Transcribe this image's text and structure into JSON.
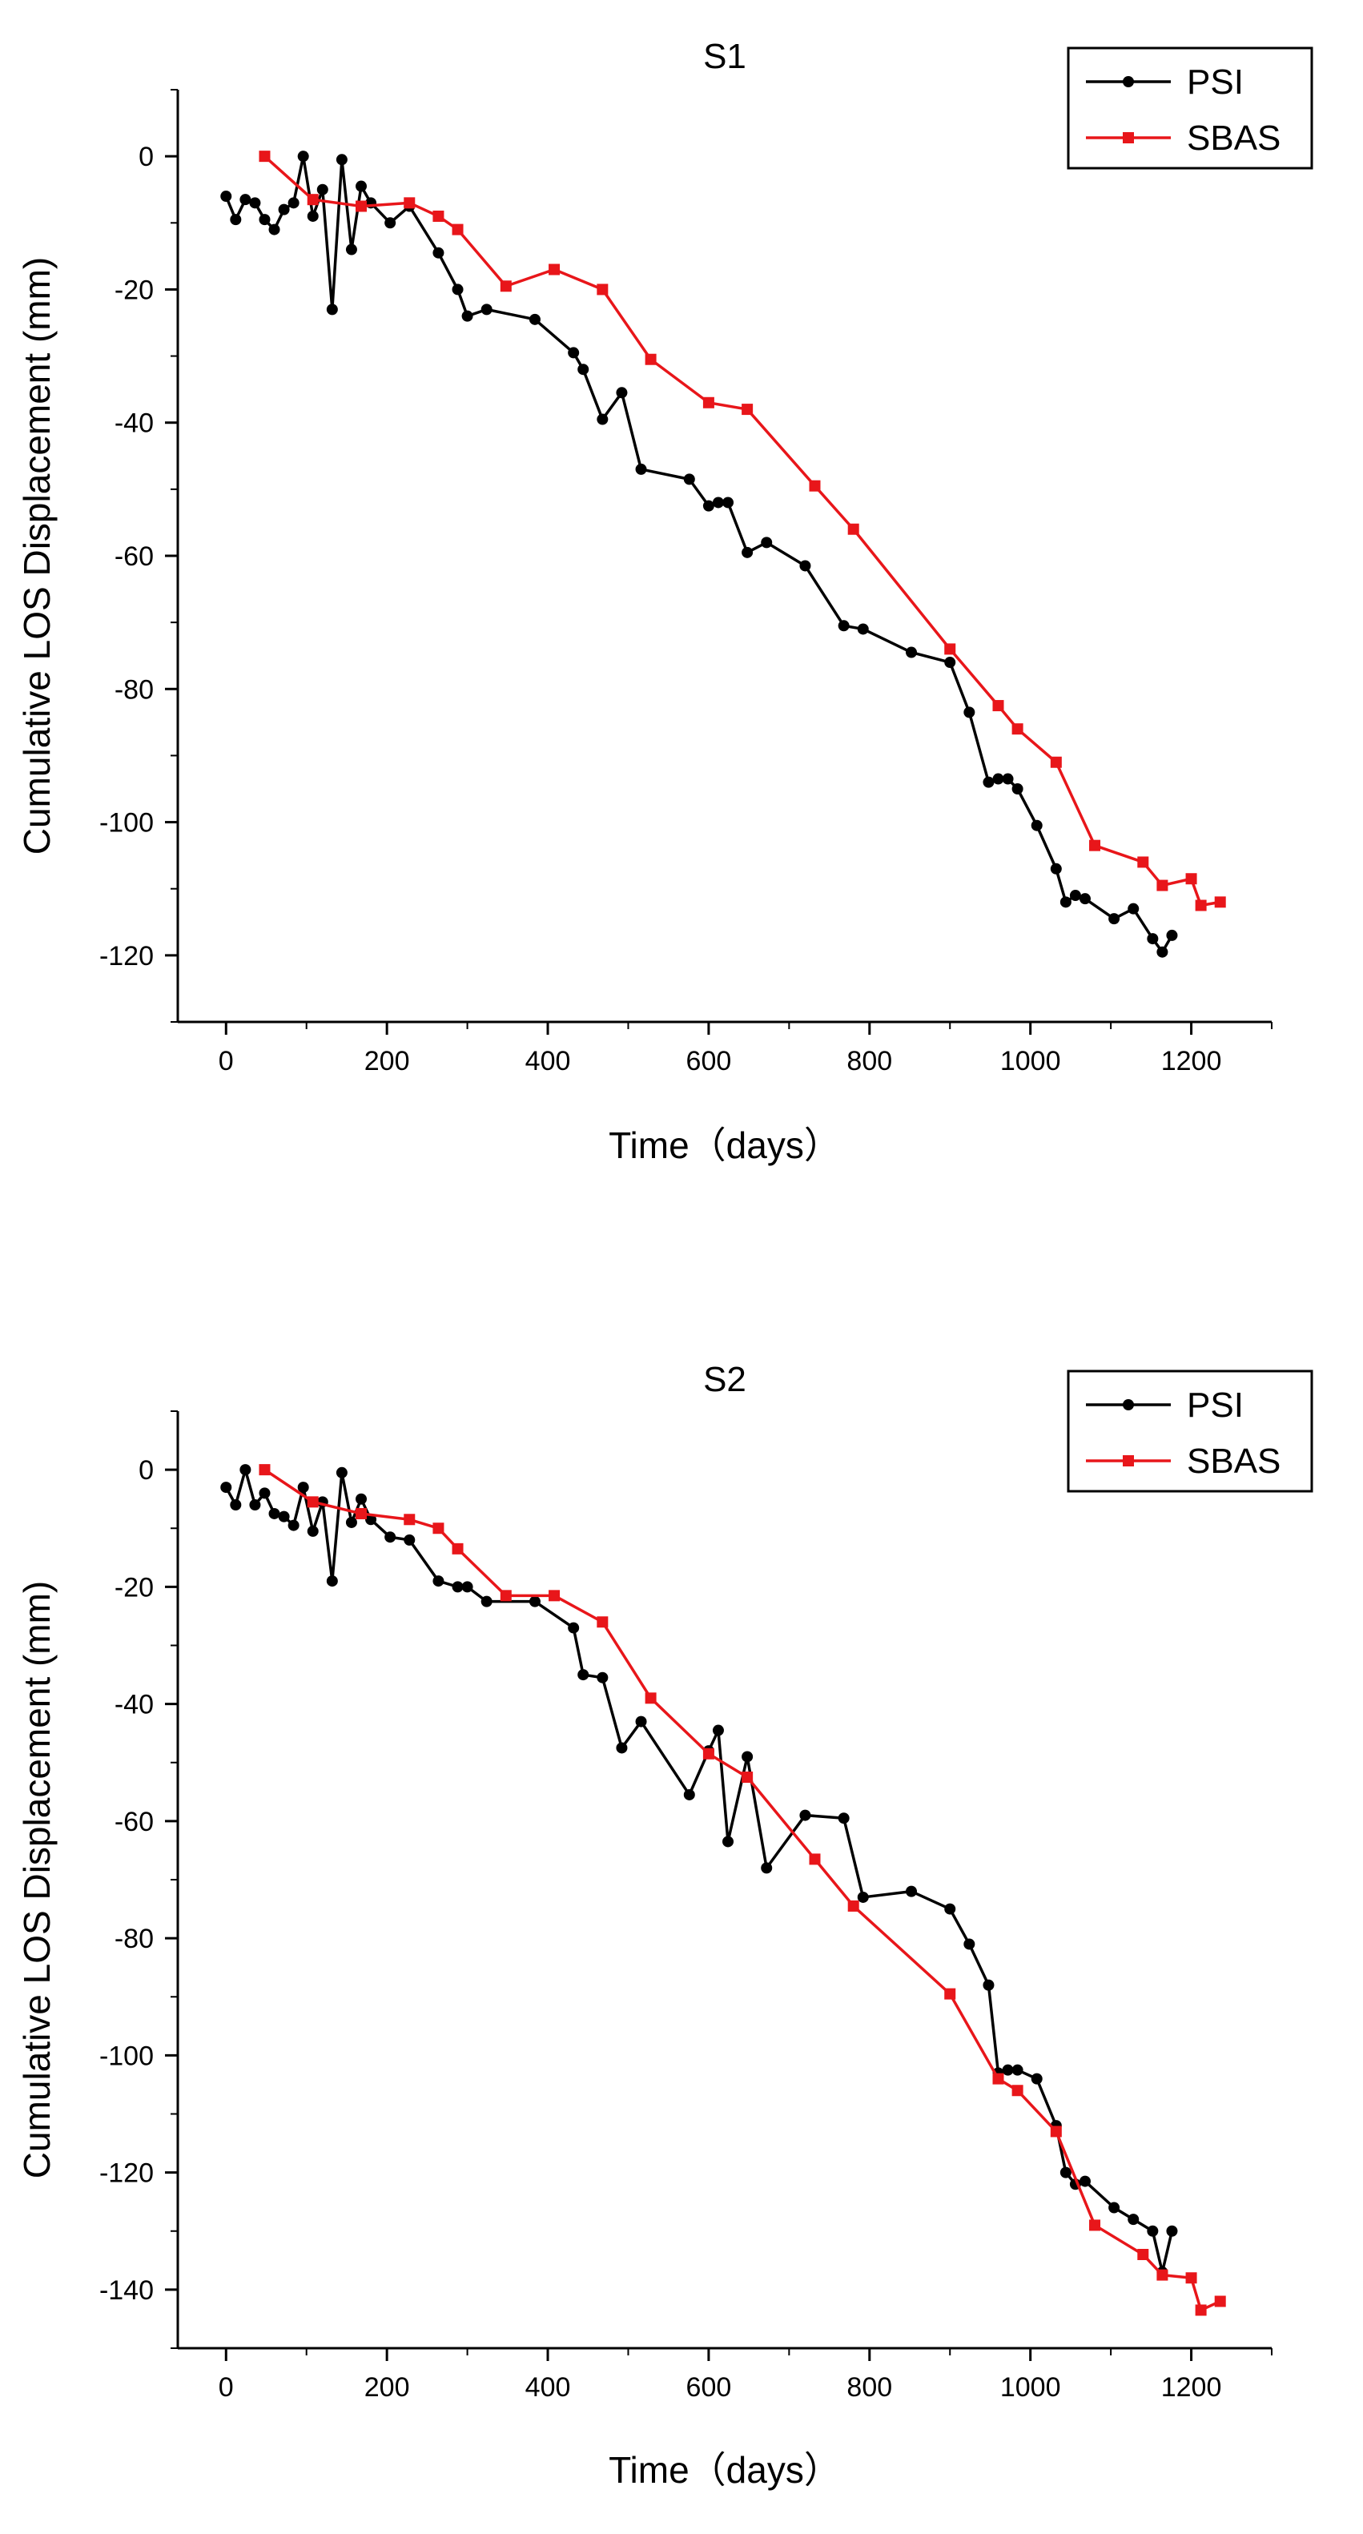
{
  "chart_data": [
    {
      "type": "line",
      "title": "S1",
      "xlabel": "Time（days）",
      "ylabel": "Cumulative LOS Displacement (mm)",
      "xlim": [
        -60,
        1300
      ],
      "ylim": [
        -130,
        10
      ],
      "xticks": [
        0,
        200,
        400,
        600,
        800,
        1000,
        1200
      ],
      "yticks": [
        0,
        -20,
        -40,
        -60,
        -80,
        -100,
        -120
      ],
      "legend_position": "top-right",
      "series": [
        {
          "name": "PSI",
          "color": "#000000",
          "marker": "circle",
          "x": [
            0,
            12,
            24,
            36,
            48,
            60,
            72,
            84,
            96,
            108,
            120,
            132,
            144,
            156,
            168,
            180,
            204,
            228,
            264,
            288,
            300,
            324,
            384,
            432,
            444,
            468,
            492,
            516,
            576,
            600,
            612,
            624,
            648,
            672,
            720,
            768,
            792,
            852,
            900,
            924,
            948,
            960,
            972,
            984,
            1008,
            1032,
            1044,
            1056,
            1068,
            1104,
            1128,
            1152,
            1164,
            1176
          ],
          "y": [
            -6,
            -9.5,
            -6.5,
            -7,
            -9.5,
            -11,
            -8,
            -7,
            0,
            -9,
            -5,
            -23,
            -0.5,
            -14,
            -4.5,
            -7,
            -10,
            -7.5,
            -14.5,
            -20,
            -24,
            -23,
            -24.5,
            -29.5,
            -32,
            -39.5,
            -35.5,
            -47,
            -48.5,
            -52.5,
            -52,
            -52,
            -59.5,
            -58,
            -61.5,
            -70.5,
            -71,
            -74.5,
            -76,
            -83.5,
            -94,
            -93.5,
            -93.5,
            -95,
            -100.5,
            -107,
            -112,
            -111,
            -111.5,
            -114.5,
            -113,
            -117.5,
            -119.5,
            -117
          ]
        },
        {
          "name": "SBAS",
          "color": "#e8161a",
          "marker": "square",
          "x": [
            48,
            108,
            168,
            228,
            264,
            288,
            348,
            408,
            468,
            528,
            600,
            648,
            732,
            780,
            900,
            960,
            984,
            1032,
            1080,
            1140,
            1164,
            1200,
            1212,
            1236
          ],
          "y": [
            0,
            -6.5,
            -7.5,
            -7,
            -9,
            -11,
            -19.5,
            -17,
            -20,
            -30.5,
            -37,
            -38,
            -49.5,
            -56,
            -74,
            -82.5,
            -86,
            -91,
            -103.5,
            -106,
            -109.5,
            -108.5,
            -112.5,
            -112
          ]
        }
      ]
    },
    {
      "type": "line",
      "title": "S2",
      "xlabel": "Time（days）",
      "ylabel": "Cumulative LOS Displacement (mm)",
      "xlim": [
        -60,
        1300
      ],
      "ylim": [
        -150,
        10
      ],
      "xticks": [
        0,
        200,
        400,
        600,
        800,
        1000,
        1200
      ],
      "yticks": [
        0,
        -20,
        -40,
        -60,
        -80,
        -100,
        -120,
        -140
      ],
      "legend_position": "top-right",
      "series": [
        {
          "name": "PSI",
          "color": "#000000",
          "marker": "circle",
          "x": [
            0,
            12,
            24,
            36,
            48,
            60,
            72,
            84,
            96,
            108,
            120,
            132,
            144,
            156,
            168,
            180,
            204,
            228,
            264,
            288,
            300,
            324,
            384,
            432,
            444,
            468,
            492,
            516,
            576,
            600,
            612,
            624,
            648,
            672,
            720,
            768,
            792,
            852,
            900,
            924,
            948,
            960,
            972,
            984,
            1008,
            1032,
            1044,
            1056,
            1068,
            1104,
            1128,
            1152,
            1164,
            1176
          ],
          "y": [
            -3,
            -6,
            0,
            -6,
            -4,
            -7.5,
            -8,
            -9.5,
            -3,
            -10.5,
            -5.5,
            -19,
            -0.5,
            -9,
            -5,
            -8.5,
            -11.5,
            -12,
            -19,
            -20,
            -20,
            -22.5,
            -22.5,
            -27,
            -35,
            -35.5,
            -47.5,
            -43,
            -55.5,
            -48,
            -44.5,
            -63.5,
            -49,
            -68,
            -59,
            -59.5,
            -73,
            -72,
            -75,
            -81,
            -88,
            -103,
            -102.5,
            -102.5,
            -104,
            -112,
            -120,
            -122,
            -121.5,
            -126,
            -128,
            -130,
            -137,
            -130
          ]
        },
        {
          "name": "SBAS",
          "color": "#e8161a",
          "marker": "square",
          "x": [
            48,
            108,
            168,
            228,
            264,
            288,
            348,
            408,
            468,
            528,
            600,
            648,
            732,
            780,
            900,
            960,
            984,
            1032,
            1080,
            1140,
            1164,
            1200,
            1212,
            1236
          ],
          "y": [
            0,
            -5.5,
            -7.5,
            -8.5,
            -10,
            -13.5,
            -21.5,
            -21.5,
            -26,
            -39,
            -48.5,
            -52.5,
            -66.5,
            -74.5,
            -89.5,
            -104,
            -106,
            -113,
            -129,
            -134,
            -137.5,
            -138,
            -143.5,
            -142
          ]
        }
      ]
    }
  ]
}
